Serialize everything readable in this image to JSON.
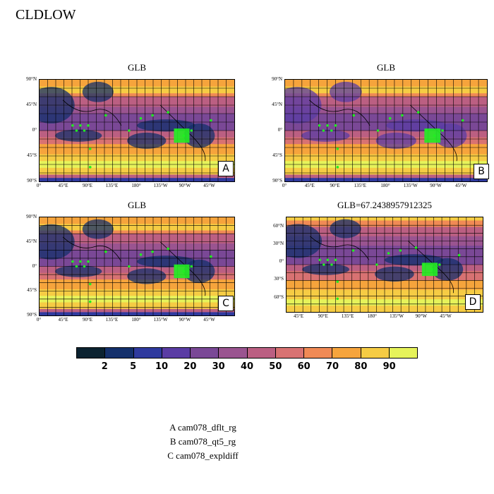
{
  "page_title": "CLDLOW",
  "panels": [
    {
      "id": "A",
      "title": "GLB",
      "letter": "A"
    },
    {
      "id": "B",
      "title": "GLB",
      "letter": "B"
    },
    {
      "id": "C",
      "title": "GLB",
      "letter": "C"
    },
    {
      "id": "D",
      "title": "GLB=67.2438957912325",
      "letter": "D"
    }
  ],
  "lat_ticks_full": [
    "90°N",
    "45°N",
    "0°",
    "45°S",
    "90°S"
  ],
  "lon_ticks_full": [
    "0°",
    "45°E",
    "90°E",
    "135°E",
    "180°",
    "135°W",
    "90°W",
    "45°W"
  ],
  "lat_ticks_d": [
    "60°N",
    "30°N",
    "0°",
    "30°S",
    "60°S"
  ],
  "lon_ticks_d": [
    "45°E",
    "90°E",
    "135°E",
    "180°",
    "135°W",
    "90°W",
    "45°W"
  ],
  "colorbar": {
    "colors": [
      "#0b2230",
      "#14306b",
      "#2f3a9e",
      "#5a3ca4",
      "#7a4896",
      "#9a5490",
      "#bb5f82",
      "#d87272",
      "#f08a55",
      "#f6a43c",
      "#f6cc44",
      "#e6f35a"
    ],
    "labels": [
      "2",
      "5",
      "10",
      "20",
      "30",
      "40",
      "50",
      "60",
      "70",
      "80",
      "90"
    ]
  },
  "legend": [
    "A  cam078_dflt_rg",
    "B  cam078_qt5_rg",
    "C  cam078_expldiff"
  ]
}
